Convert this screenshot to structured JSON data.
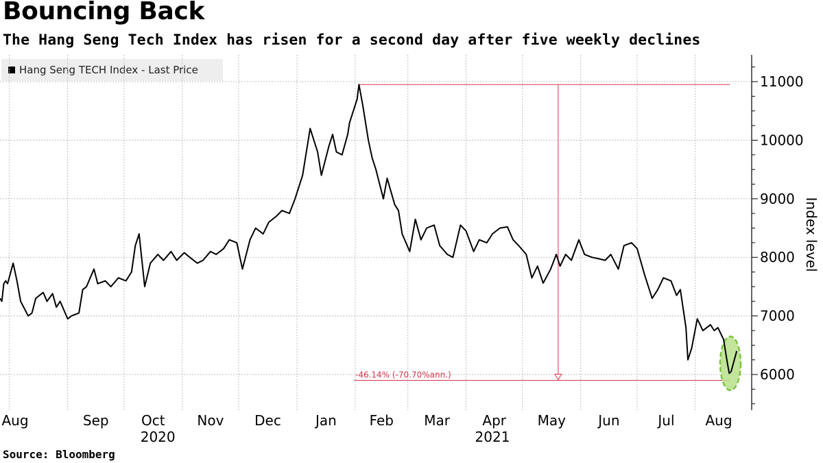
{
  "header": {
    "title": "Bouncing Back",
    "subtitle": "The Hang Seng Tech Index has risen for a second day after five weekly declines"
  },
  "legend": {
    "label": "Hang Seng TECH Index - Last Price"
  },
  "source": "Source:  Bloomberg",
  "annotation": {
    "text": "-46.14% (-70.70%ann.)"
  },
  "colors": {
    "line": "#000000",
    "annotation": "#d6334f",
    "highlight_fill": "#b7e08a",
    "highlight_stroke": "#7dc242",
    "grid": "#bfbfbf"
  },
  "chart_data": {
    "type": "line",
    "title": "Bouncing Back",
    "subtitle": "The Hang Seng Tech Index has risen for a second day after five weekly declines",
    "ylabel": "Index level",
    "xlabel": "",
    "ylim": [
      5450,
      11450
    ],
    "yticks": [
      6000,
      7000,
      8000,
      9000,
      10000,
      11000
    ],
    "xlim": [
      "2020-07-27",
      "2021-08-20"
    ],
    "month_ticks": [
      "Aug",
      "Sep",
      "Oct",
      "Nov",
      "Dec",
      "Jan",
      "Feb",
      "Mar",
      "Apr",
      "May",
      "Jun",
      "Jul",
      "Aug"
    ],
    "month_dates": [
      "2020-08-01",
      "2020-09-01",
      "2020-10-01",
      "2020-11-01",
      "2020-12-01",
      "2021-01-01",
      "2021-02-01",
      "2021-03-01",
      "2021-04-01",
      "2021-05-01",
      "2021-06-01",
      "2021-07-01",
      "2021-08-01"
    ],
    "year_labels": [
      {
        "label": "2020",
        "date": "2020-10-19"
      },
      {
        "label": "2021",
        "date": "2021-04-15"
      }
    ],
    "grid": true,
    "legend_position": "top-left",
    "series": [
      {
        "name": "Hang Seng TECH Index - Last Price",
        "points": [
          [
            "2020-07-27",
            7300
          ],
          [
            "2020-07-28",
            7250
          ],
          [
            "2020-07-29",
            7550
          ],
          [
            "2020-07-30",
            7600
          ],
          [
            "2020-07-31",
            7550
          ],
          [
            "2020-08-03",
            7900
          ],
          [
            "2020-08-05",
            7600
          ],
          [
            "2020-08-07",
            7250
          ],
          [
            "2020-08-11",
            7000
          ],
          [
            "2020-08-13",
            7050
          ],
          [
            "2020-08-15",
            7300
          ],
          [
            "2020-08-17",
            7350
          ],
          [
            "2020-08-19",
            7400
          ],
          [
            "2020-08-21",
            7250
          ],
          [
            "2020-08-24",
            7380
          ],
          [
            "2020-08-26",
            7150
          ],
          [
            "2020-08-28",
            7250
          ],
          [
            "2020-09-01",
            6950
          ],
          [
            "2020-09-03",
            7000
          ],
          [
            "2020-09-07",
            7050
          ],
          [
            "2020-09-09",
            7450
          ],
          [
            "2020-09-11",
            7500
          ],
          [
            "2020-09-15",
            7800
          ],
          [
            "2020-09-17",
            7550
          ],
          [
            "2020-09-21",
            7600
          ],
          [
            "2020-09-24",
            7500
          ],
          [
            "2020-09-28",
            7650
          ],
          [
            "2020-10-02",
            7600
          ],
          [
            "2020-10-05",
            7750
          ],
          [
            "2020-10-07",
            8200
          ],
          [
            "2020-10-09",
            8400
          ],
          [
            "2020-10-12",
            7500
          ],
          [
            "2020-10-15",
            7900
          ],
          [
            "2020-10-19",
            8050
          ],
          [
            "2020-10-22",
            7950
          ],
          [
            "2020-10-26",
            8100
          ],
          [
            "2020-10-29",
            7950
          ],
          [
            "2020-11-02",
            8080
          ],
          [
            "2020-11-05",
            8000
          ],
          [
            "2020-11-09",
            7900
          ],
          [
            "2020-11-12",
            7950
          ],
          [
            "2020-11-16",
            8100
          ],
          [
            "2020-11-19",
            8050
          ],
          [
            "2020-11-23",
            8150
          ],
          [
            "2020-11-26",
            8300
          ],
          [
            "2020-11-30",
            8250
          ],
          [
            "2020-12-03",
            7800
          ],
          [
            "2020-12-07",
            8300
          ],
          [
            "2020-12-10",
            8500
          ],
          [
            "2020-12-14",
            8400
          ],
          [
            "2020-12-17",
            8600
          ],
          [
            "2020-12-21",
            8700
          ],
          [
            "2020-12-24",
            8800
          ],
          [
            "2020-12-28",
            8750
          ],
          [
            "2020-12-31",
            9000
          ],
          [
            "2021-01-04",
            9400
          ],
          [
            "2021-01-06",
            9800
          ],
          [
            "2021-01-08",
            10200
          ],
          [
            "2021-01-12",
            9800
          ],
          [
            "2021-01-14",
            9400
          ],
          [
            "2021-01-18",
            9900
          ],
          [
            "2021-01-20",
            10100
          ],
          [
            "2021-01-22",
            9800
          ],
          [
            "2021-01-25",
            9750
          ],
          [
            "2021-01-28",
            10100
          ],
          [
            "2021-01-29",
            10300
          ],
          [
            "2021-02-02",
            10700
          ],
          [
            "2021-02-03",
            10950
          ],
          [
            "2021-02-05",
            10600
          ],
          [
            "2021-02-08",
            10000
          ],
          [
            "2021-02-10",
            9700
          ],
          [
            "2021-02-12",
            9500
          ],
          [
            "2021-02-16",
            9000
          ],
          [
            "2021-02-18",
            9350
          ],
          [
            "2021-02-22",
            8900
          ],
          [
            "2021-02-24",
            8800
          ],
          [
            "2021-02-26",
            8400
          ],
          [
            "2021-03-02",
            8100
          ],
          [
            "2021-03-05",
            8650
          ],
          [
            "2021-03-08",
            8300
          ],
          [
            "2021-03-11",
            8500
          ],
          [
            "2021-03-15",
            8550
          ],
          [
            "2021-03-18",
            8200
          ],
          [
            "2021-03-22",
            8050
          ],
          [
            "2021-03-25",
            8000
          ],
          [
            "2021-03-29",
            8550
          ],
          [
            "2021-04-01",
            8450
          ],
          [
            "2021-04-05",
            8100
          ],
          [
            "2021-04-08",
            8300
          ],
          [
            "2021-04-12",
            8250
          ],
          [
            "2021-04-15",
            8400
          ],
          [
            "2021-04-19",
            8500
          ],
          [
            "2021-04-23",
            8520
          ],
          [
            "2021-04-26",
            8300
          ],
          [
            "2021-04-29",
            8200
          ],
          [
            "2021-05-03",
            8050
          ],
          [
            "2021-05-06",
            7650
          ],
          [
            "2021-05-09",
            7850
          ],
          [
            "2021-05-12",
            7560
          ],
          [
            "2021-05-16",
            7800
          ],
          [
            "2021-05-19",
            8050
          ],
          [
            "2021-05-21",
            7850
          ],
          [
            "2021-05-24",
            8050
          ],
          [
            "2021-05-27",
            7950
          ],
          [
            "2021-05-31",
            8300
          ],
          [
            "2021-06-03",
            8050
          ],
          [
            "2021-06-07",
            8000
          ],
          [
            "2021-06-10",
            7980
          ],
          [
            "2021-06-14",
            7950
          ],
          [
            "2021-06-17",
            8050
          ],
          [
            "2021-06-21",
            7800
          ],
          [
            "2021-06-24",
            8200
          ],
          [
            "2021-06-28",
            8250
          ],
          [
            "2021-07-01",
            8150
          ],
          [
            "2021-07-05",
            7700
          ],
          [
            "2021-07-09",
            7300
          ],
          [
            "2021-07-12",
            7450
          ],
          [
            "2021-07-15",
            7650
          ],
          [
            "2021-07-19",
            7600
          ],
          [
            "2021-07-22",
            7350
          ],
          [
            "2021-07-24",
            7450
          ],
          [
            "2021-07-27",
            6800
          ],
          [
            "2021-07-28",
            6250
          ],
          [
            "2021-07-30",
            6450
          ],
          [
            "2021-08-02",
            6950
          ],
          [
            "2021-08-05",
            6750
          ],
          [
            "2021-08-09",
            6850
          ],
          [
            "2021-08-11",
            6750
          ],
          [
            "2021-08-13",
            6800
          ],
          [
            "2021-08-16",
            6600
          ],
          [
            "2021-08-18",
            6200
          ],
          [
            "2021-08-19",
            6020
          ],
          [
            "2021-08-20",
            6050
          ],
          [
            "2021-08-23",
            6400
          ]
        ]
      }
    ],
    "annotations": [
      {
        "type": "high",
        "date": "2021-02-03",
        "value": 10950
      },
      {
        "type": "low",
        "date": "2021-08-19",
        "value": 5900
      },
      {
        "type": "change",
        "label": "-46.14% (-70.70%ann.)",
        "date": "2021-05-20"
      },
      {
        "type": "highlight",
        "date": "2021-08-20",
        "value_range": [
          5730,
          6650
        ]
      }
    ]
  }
}
